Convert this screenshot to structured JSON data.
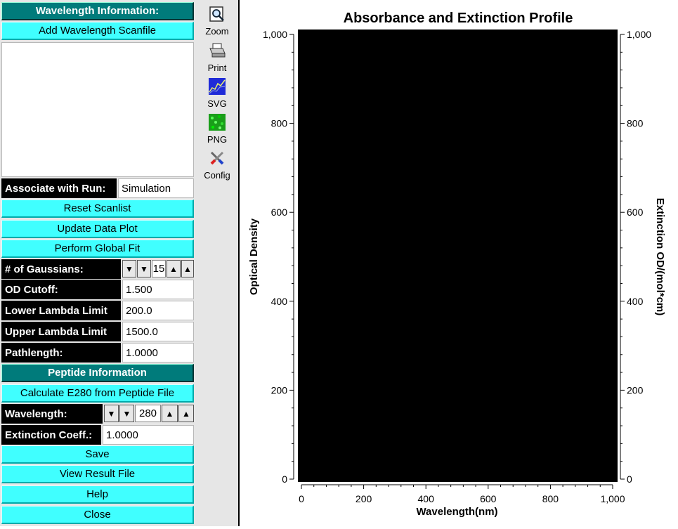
{
  "panel": {
    "wavelength_header": "Wavelength Information:",
    "add_scan_button": "Add Wavelength Scanfile",
    "associate_label": "Associate with Run:",
    "associate_value": "Simulation",
    "reset_button": "Reset Scanlist",
    "update_button": "Update Data Plot",
    "global_fit_button": "Perform Global Fit",
    "gaussians_label": "# of Gaussians:",
    "gaussians_value": "15",
    "od_cutoff_label": "OD Cutoff:",
    "od_cutoff_value": "1.500",
    "lower_lambda_label": "Lower Lambda Limit",
    "lower_lambda_value": "200.0",
    "upper_lambda_label": "Upper Lambda Limit",
    "upper_lambda_value": "1500.0",
    "pathlength_label": "Pathlength:",
    "pathlength_value": "1.0000",
    "peptide_header": "Peptide Information",
    "calc_e280_button": "Calculate E280 from Peptide File",
    "wavelength_label": "Wavelength:",
    "wavelength_value": "280",
    "extinction_label": "Extinction Coeff.:",
    "extinction_value": "1.0000",
    "save_button": "Save",
    "view_result_button": "View Result File",
    "help_button": "Help",
    "close_button": "Close"
  },
  "toolbar": {
    "zoom": "Zoom",
    "print": "Print",
    "svg": "SVG",
    "png": "PNG",
    "config": "Config"
  },
  "chart_data": {
    "type": "line",
    "title": "Absorbance and Extinction Profile",
    "xlabel": "Wavelength(nm)",
    "ylabel": "Optical Density",
    "y2label": "Extinction OD/(mol*cm)",
    "xlim": [
      0,
      1000
    ],
    "ylim": [
      0,
      1000
    ],
    "y2lim": [
      0,
      1000
    ],
    "x_ticks": [
      "0",
      "200",
      "400",
      "600",
      "800",
      "1,000"
    ],
    "y_ticks": [
      "0",
      "200",
      "400",
      "600",
      "800",
      "1,000"
    ],
    "y2_ticks": [
      "0",
      "200",
      "400",
      "600",
      "800",
      "1,000"
    ],
    "series": [],
    "canvas_color": "#000000",
    "grid": false
  }
}
